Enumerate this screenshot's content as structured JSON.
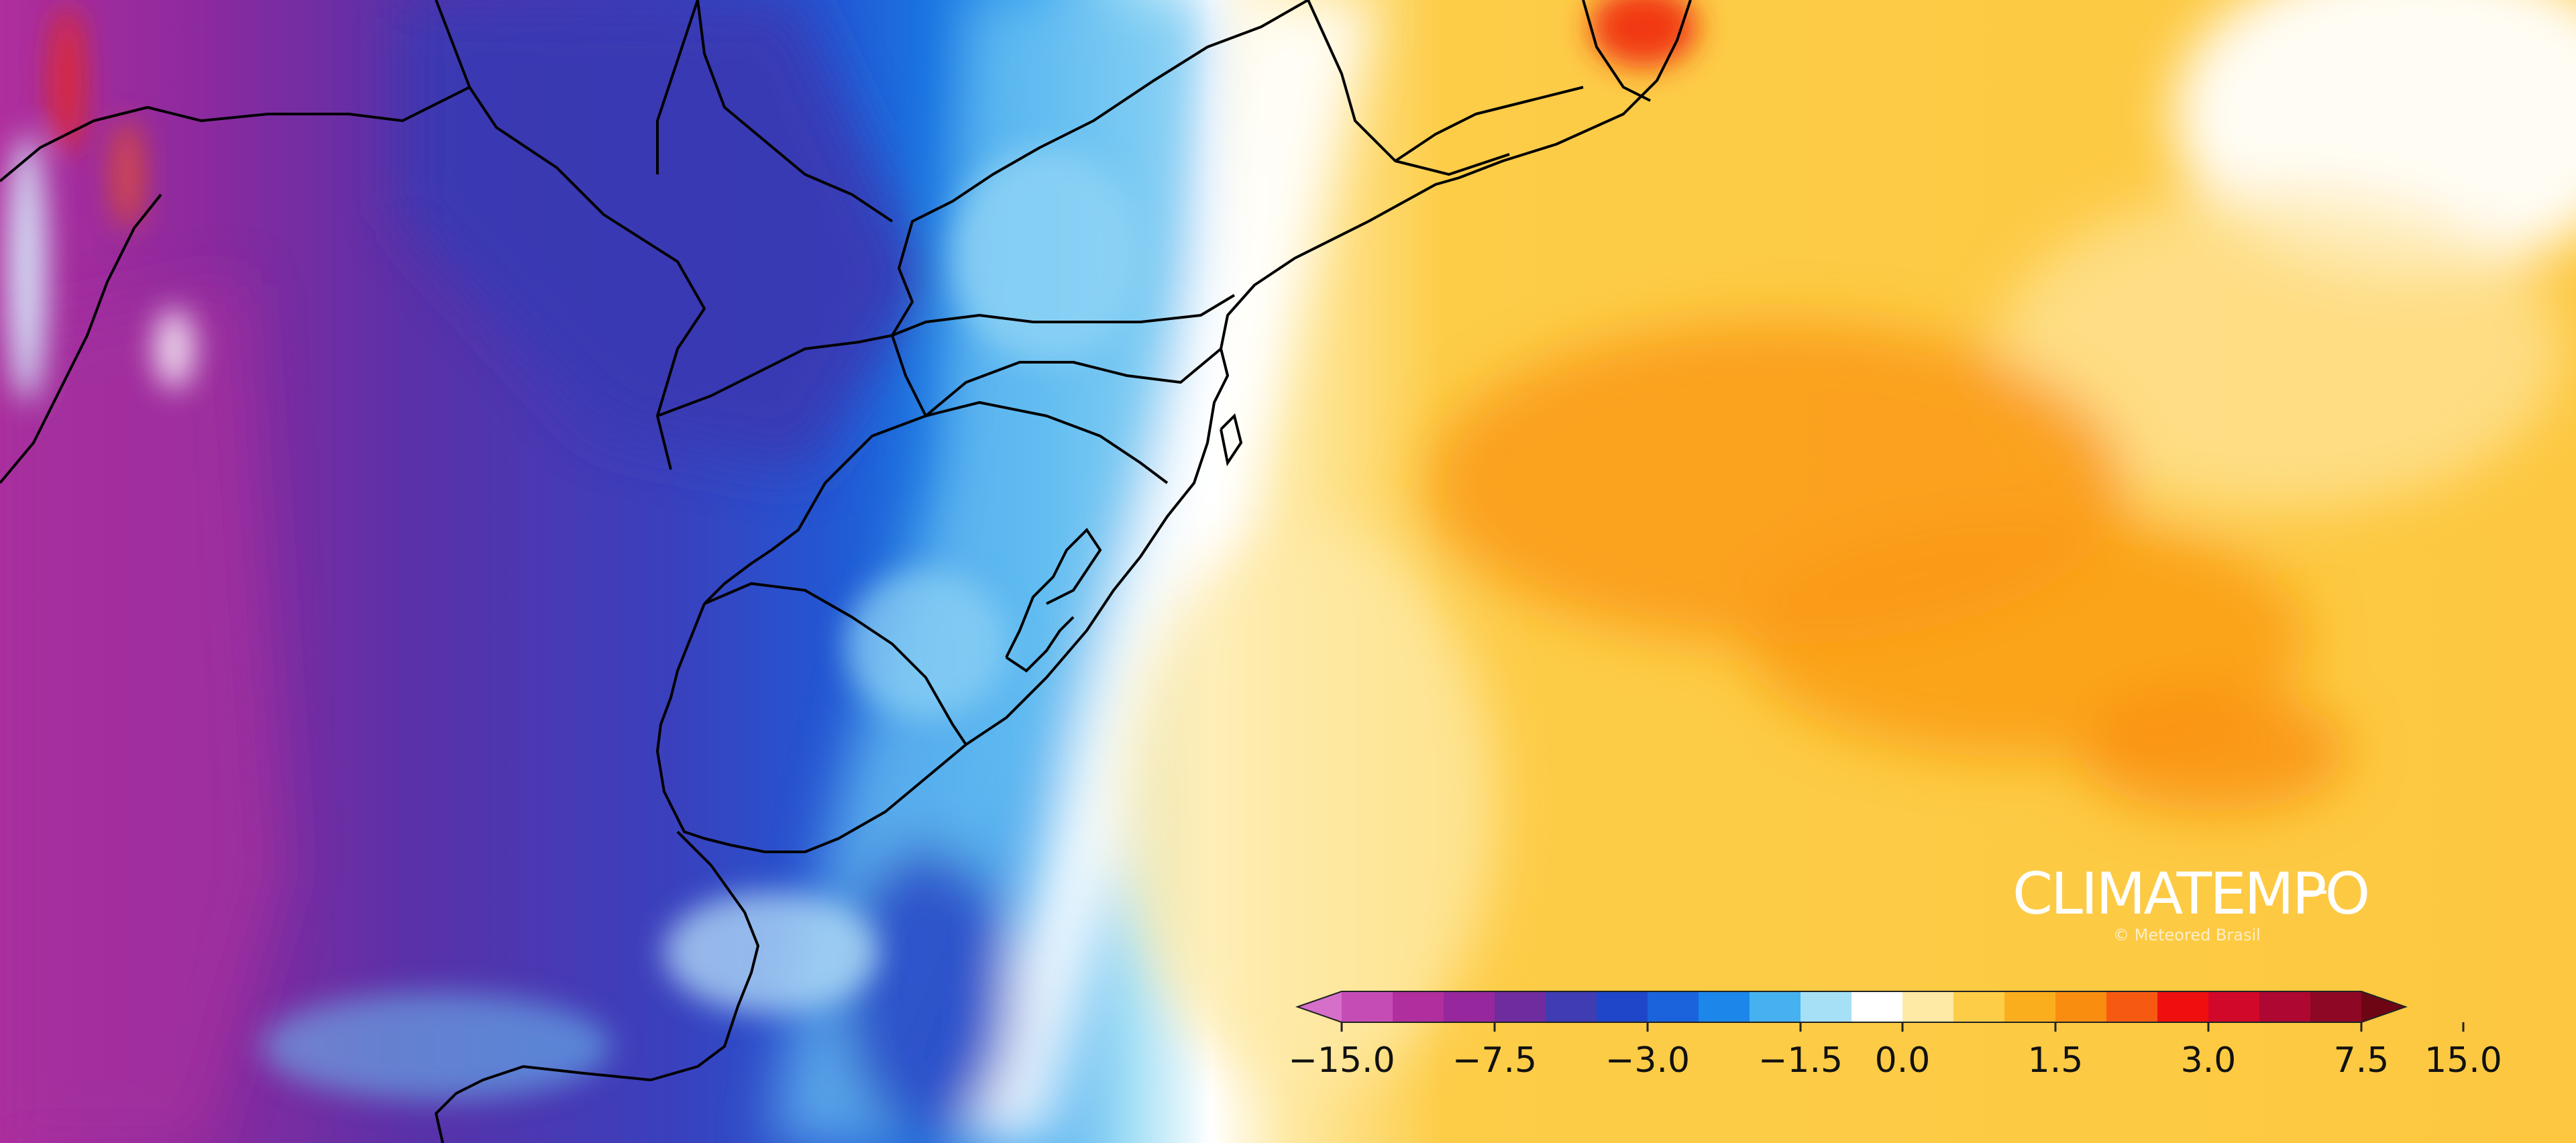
{
  "map": {
    "type": "anomaly-field",
    "graticule": false,
    "left_side": "negative anomaly (blues / purples)",
    "right_side": "positive anomaly (yellows / oranges)"
  },
  "watermark": {
    "brand": "CLIMATEMPO",
    "subtitle": "© Meteored Brasil"
  },
  "colorbar": {
    "extend": "both",
    "colors": [
      "#d56fc9",
      "#c64cb5",
      "#b02e9d",
      "#96279c",
      "#6f2c9e",
      "#3f3cb4",
      "#1f46c8",
      "#1a63dd",
      "#1d86ea",
      "#45b1ef",
      "#a6e0f6",
      "#ffffff",
      "#feeaa5",
      "#fdcd48",
      "#fbae1d",
      "#f98d0f",
      "#f65a12",
      "#ef0f0f",
      "#d1082a",
      "#ae0732",
      "#8e0725",
      "#6e0515"
    ],
    "ticks": [
      {
        "label": "−15.0",
        "index": 0
      },
      {
        "label": "−7.5",
        "index": 3
      },
      {
        "label": "−3.0",
        "index": 6
      },
      {
        "label": "−1.5",
        "index": 9
      },
      {
        "label": "0.0",
        "index": 11
      },
      {
        "label": "1.5",
        "index": 14
      },
      {
        "label": "3.0",
        "index": 17
      },
      {
        "label": "7.5",
        "index": 20
      },
      {
        "label": "15.0",
        "index": 22
      }
    ]
  }
}
